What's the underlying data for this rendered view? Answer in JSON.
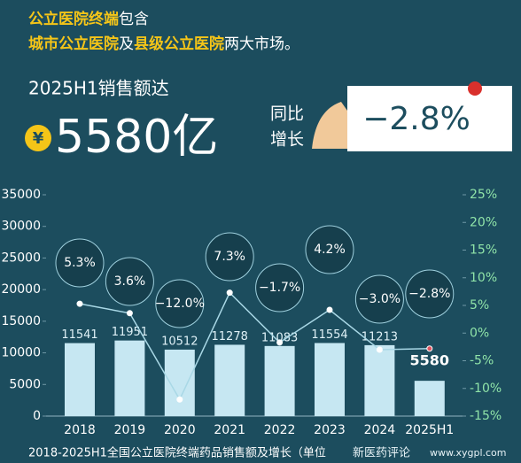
{
  "intro": {
    "lines": [
      [
        {
          "text": "公立医院终端",
          "highlight": true
        },
        {
          "text": "包含",
          "highlight": false
        }
      ],
      [
        {
          "text": "城市公立医院",
          "highlight": true
        },
        {
          "text": "及",
          "highlight": false
        },
        {
          "text": "县级公立医院",
          "highlight": true
        },
        {
          "text": "两大市场。",
          "highlight": false
        }
      ]
    ]
  },
  "headline": {
    "label": "2025H1销售额达",
    "currency": "¥",
    "amount": "5580亿",
    "yoy_label": [
      "同比",
      "增长"
    ],
    "yoy_value": "−2.8%"
  },
  "chart_data": {
    "type": "bar-line",
    "categories": [
      "2018",
      "2019",
      "2020",
      "2021",
      "2022",
      "2023",
      "2024",
      "2025H1"
    ],
    "series": [
      {
        "type": "bar",
        "color": "#c6e7f2",
        "values": [
          11541,
          11951,
          10512,
          11278,
          11083,
          11554,
          11213,
          5580
        ]
      },
      {
        "type": "line",
        "axis": "y2",
        "color": "#a9d8e6",
        "values": [
          5.3,
          3.6,
          -12.0,
          7.3,
          -1.7,
          4.2,
          -3.0,
          -2.8
        ],
        "value_labels": [
          "5.3%",
          "3.6%",
          "−12.0%",
          "7.3%",
          "−1.7%",
          "4.2%",
          "−3.0%",
          "−2.8%"
        ]
      }
    ],
    "ylim": [
      0,
      35000
    ],
    "yticks": [
      0,
      5000,
      10000,
      15000,
      20000,
      25000,
      30000,
      35000
    ],
    "y2lim": [
      -15,
      25
    ],
    "y2ticks": [
      {
        "value": -15,
        "label": "-15%"
      },
      {
        "value": -10,
        "label": "-10%"
      },
      {
        "value": -5,
        "label": "-5%"
      },
      {
        "value": 0,
        "label": "0%"
      },
      {
        "value": 5,
        "label": "5%"
      },
      {
        "value": 10,
        "label": "10%"
      },
      {
        "value": 15,
        "label": "15%"
      },
      {
        "value": 20,
        "label": "20%"
      },
      {
        "value": 25,
        "label": "25%"
      }
    ],
    "caption": "2018-2025H1全国公立医院终端药品销售额及增长（单位"
  },
  "watermark": {
    "name": "新医药评论",
    "url": "www.xygpl.com"
  }
}
